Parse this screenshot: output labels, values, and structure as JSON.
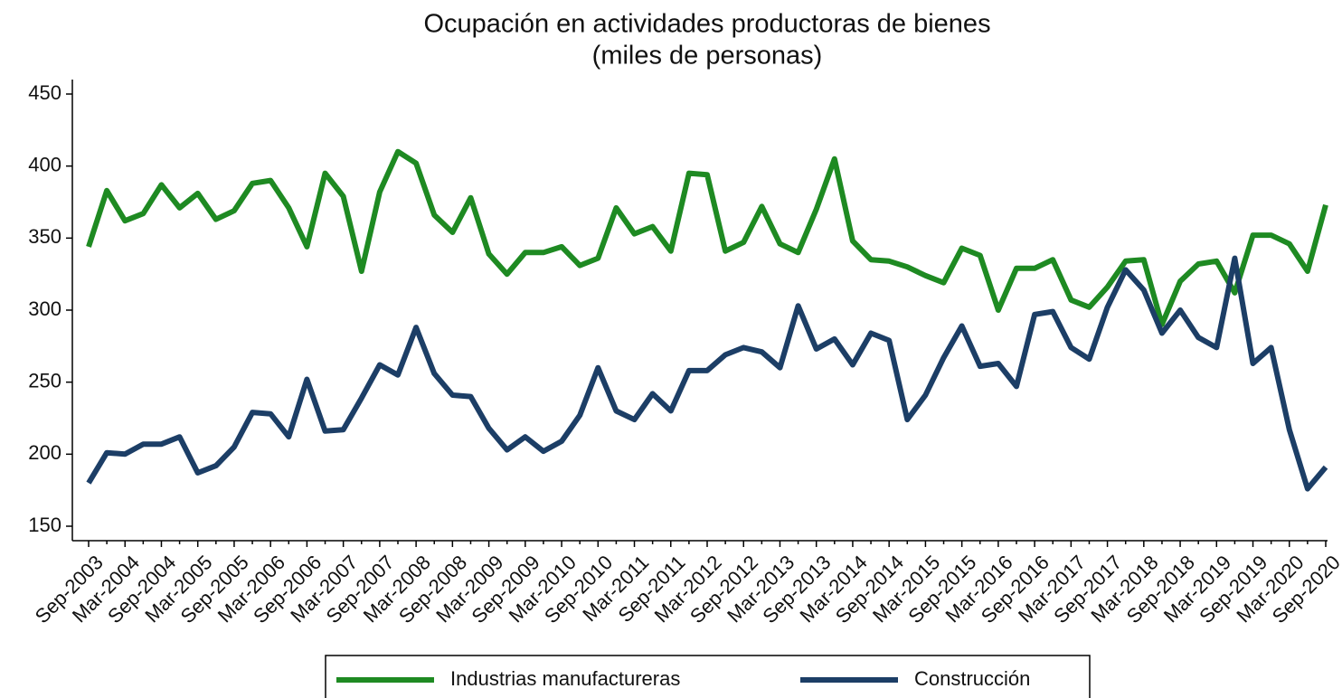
{
  "chart_data": {
    "type": "line",
    "title": "Ocupación en actividades productoras de bienes",
    "subtitle": "(miles de personas)",
    "categories": [
      "Sep-2003",
      null,
      "Mar-2004",
      null,
      "Sep-2004",
      null,
      "Mar-2005",
      null,
      "Sep-2005",
      null,
      "Mar-2006",
      null,
      "Sep-2006",
      null,
      "Mar-2007",
      null,
      "Sep-2007",
      null,
      "Mar-2008",
      null,
      "Sep-2008",
      null,
      "Mar-2009",
      null,
      "Sep-2009",
      null,
      "Mar-2010",
      null,
      "Sep-2010",
      null,
      "Mar-2011",
      null,
      "Sep-2011",
      null,
      "Mar-2012",
      null,
      "Sep-2012",
      null,
      "Mar-2013",
      null,
      "Sep-2013",
      null,
      "Mar-2014",
      null,
      "Sep-2014",
      null,
      "Mar-2015",
      null,
      "Sep-2015",
      null,
      "Mar-2016",
      null,
      "Sep-2016",
      null,
      "Mar-2017",
      null,
      "Sep-2017",
      null,
      "Mar-2018",
      null,
      "Sep-2018",
      null,
      "Mar-2019",
      null,
      "Sep-2019",
      null,
      "Mar-2020",
      null,
      "Sep-2020"
    ],
    "series": [
      {
        "name": "Industrias manufactureras",
        "color": "#1e8a22",
        "values": [
          344,
          383,
          362,
          367,
          387,
          371,
          381,
          363,
          369,
          388,
          390,
          371,
          344,
          395,
          379,
          327,
          382,
          410,
          402,
          366,
          354,
          378,
          339,
          325,
          340,
          340,
          344,
          331,
          336,
          371,
          353,
          358,
          341,
          395,
          394,
          341,
          347,
          372,
          346,
          340,
          370,
          405,
          348,
          335,
          334,
          330,
          324,
          319,
          343,
          338,
          300,
          329,
          329,
          335,
          307,
          302,
          316,
          334,
          335,
          290,
          320,
          332,
          334,
          312,
          352,
          352,
          346,
          327,
          373
        ]
      },
      {
        "name": "Construcción",
        "color": "#1c3e66",
        "values": [
          180,
          201,
          200,
          207,
          207,
          212,
          187,
          192,
          205,
          229,
          228,
          212,
          252,
          216,
          217,
          239,
          262,
          255,
          288,
          256,
          241,
          240,
          218,
          203,
          212,
          202,
          209,
          227,
          260,
          230,
          224,
          242,
          230,
          258,
          258,
          269,
          274,
          271,
          260,
          303,
          273,
          280,
          262,
          284,
          279,
          224,
          241,
          267,
          289,
          261,
          263,
          247,
          297,
          299,
          274,
          266,
          302,
          328,
          314,
          284,
          300,
          281,
          274,
          336,
          263,
          274,
          217,
          176,
          191
        ]
      }
    ],
    "ylim": [
      150,
      450
    ],
    "yticks": [
      150,
      200,
      250,
      300,
      350,
      400,
      450
    ],
    "grid": false,
    "legend": "bottom"
  }
}
